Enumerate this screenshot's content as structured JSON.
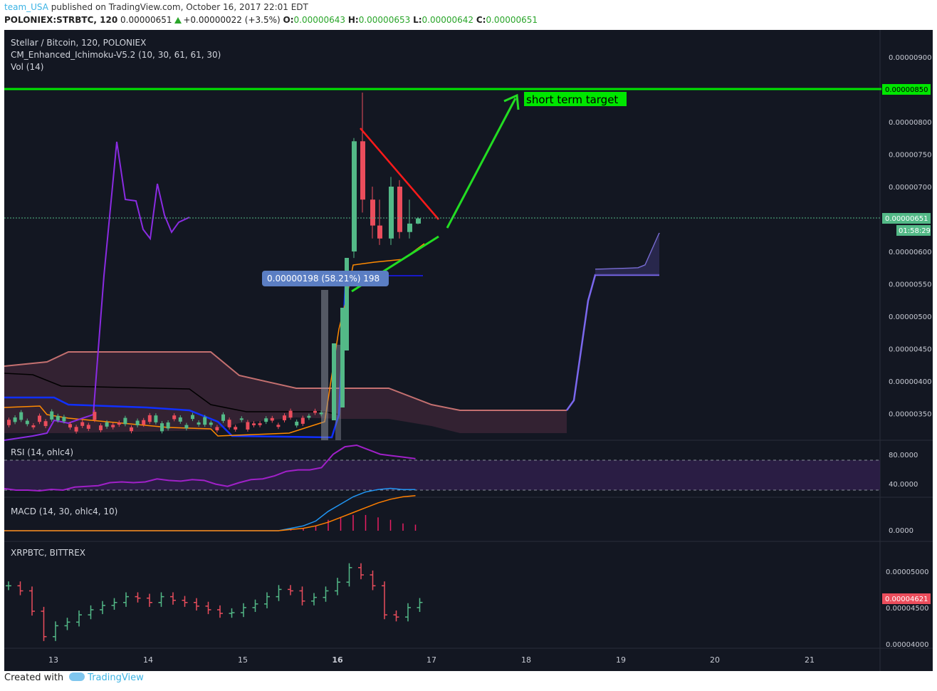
{
  "header": {
    "user": "team_USA",
    "published": "published on TradingView.com, October 16, 2017 22:01 EDT",
    "symbol": "POLONIEX:STRBTC, 120",
    "price": "0.00000651",
    "change": "+0.00000022 (+3.5%)",
    "o_label": "O:",
    "o": "0.00000643",
    "h_label": "H:",
    "h": "0.00000653",
    "l_label": "L:",
    "l": "0.00000642",
    "c_label": "C:",
    "c": "0.00000651"
  },
  "legend": {
    "title": "Stellar / Bitcoin, 120, POLONIEX",
    "ichimoku": "CM_Enhanced_Ichimoku-V5.2 (10, 30, 61, 61, 30)",
    "vol": "Vol (14)",
    "rsi": "RSI (14, ohlc4)",
    "macd": "MACD (14, 30, ohlc4, 10)",
    "xrp": "XRPBTC, BITTREX"
  },
  "annotations": {
    "target_label": "short term target",
    "measure_label": "0.00000198 (58.21%) 198",
    "price_tag": "0.00000651",
    "countdown": "01:58:29",
    "target_tag": "0.00000850",
    "xrp_tag": "0.00004621"
  },
  "colors": {
    "background": "#131722",
    "up": "#53b987",
    "down": "#eb4d5c",
    "target_line": "#00e600",
    "rsi": "#a020c8",
    "macd": "#2196f3",
    "signal": "#ff7f00"
  },
  "axis": {
    "main_ticks": [
      "0.00000900",
      "0.00000800",
      "0.00000750",
      "0.00000700",
      "0.00000600",
      "0.00000550",
      "0.00000500",
      "0.00000450",
      "0.00000400",
      "0.00000350"
    ],
    "rsi_ticks": [
      "80.0000",
      "40.0000"
    ],
    "macd_ticks": [
      "0.0000"
    ],
    "xrp_ticks": [
      "0.00005000",
      "0.00004500",
      "0.00004000"
    ],
    "x_ticks": [
      "13",
      "14",
      "15",
      "16",
      "17",
      "18",
      "19",
      "20",
      "21"
    ]
  },
  "footer": {
    "created": "Created with",
    "brand": "TradingView"
  },
  "chart_data": [
    {
      "type": "candlestick",
      "title": "Stellar / Bitcoin, 120, POLONIEX",
      "x_labels": [
        "13",
        "14",
        "15",
        "16",
        "17",
        "18",
        "19",
        "20",
        "21"
      ],
      "ylim": [
        3.2e-06,
        9.2e-06
      ],
      "target": 8.5e-06,
      "last_price": 6.51e-06,
      "candles_after_breakout": [
        {
          "o": 6e-06,
          "c": 7.7e-06,
          "h": 7.75e-06,
          "l": 5.9e-06
        },
        {
          "o": 7.7e-06,
          "c": 6.8e-06,
          "h": 8.45e-06,
          "l": 6.6e-06
        },
        {
          "o": 6.8e-06,
          "c": 6.4e-06,
          "h": 7e-06,
          "l": 6.2e-06
        },
        {
          "o": 6.4e-06,
          "c": 6.2e-06,
          "h": 6.8e-06,
          "l": 6.1e-06
        },
        {
          "o": 6.2e-06,
          "c": 7e-06,
          "h": 7.15e-06,
          "l": 6.1e-06
        },
        {
          "o": 7e-06,
          "c": 6.3e-06,
          "h": 7.1e-06,
          "l": 6.2e-06
        },
        {
          "o": 6.3e-06,
          "c": 6.43e-06,
          "h": 6.8e-06,
          "l": 6.2e-06
        },
        {
          "o": 6.43e-06,
          "c": 6.51e-06,
          "h": 6.53e-06,
          "l": 6.42e-06
        }
      ]
    },
    {
      "type": "line",
      "title": "RSI (14, ohlc4)",
      "ylim": [
        20,
        100
      ],
      "bands": [
        70,
        30
      ],
      "values": [
        32,
        30,
        30,
        29,
        31,
        30,
        34,
        35,
        36,
        40,
        41,
        40,
        41,
        45,
        43,
        42,
        44,
        43,
        38,
        35,
        40,
        44,
        45,
        49,
        55,
        57,
        57,
        60,
        78,
        88,
        90,
        84,
        78,
        76,
        74,
        72
      ]
    },
    {
      "type": "line",
      "title": "MACD (14, 30, ohlc4, 10)",
      "series": [
        {
          "values": [
            0,
            0,
            0,
            0,
            0,
            0,
            0,
            0,
            0,
            0,
            0,
            0,
            0,
            0,
            0,
            0,
            0,
            0,
            0,
            0,
            0,
            0,
            0,
            2,
            4,
            8,
            16,
            22,
            28,
            32,
            34,
            35,
            34,
            34
          ]
        },
        {
          "values": [
            0,
            0,
            0,
            0,
            0,
            0,
            0,
            0,
            0,
            0,
            0,
            0,
            0,
            0,
            0,
            0,
            0,
            0,
            0,
            0,
            0,
            0,
            0,
            1,
            2,
            4,
            7,
            11,
            15,
            19,
            23,
            26,
            28,
            29
          ]
        }
      ]
    },
    {
      "type": "ohlc",
      "title": "XRPBTC, BITTREX",
      "ylim": [
        3.9e-05,
        5.2e-05
      ],
      "last": 4.621e-05,
      "closes": [
        4.85e-05,
        4.78e-05,
        4.5e-05,
        4.15e-05,
        4.3e-05,
        4.35e-05,
        4.45e-05,
        4.52e-05,
        4.58e-05,
        4.62e-05,
        4.7e-05,
        4.68e-05,
        4.62e-05,
        4.7e-05,
        4.65e-05,
        4.62e-05,
        4.57e-05,
        4.52e-05,
        4.47e-05,
        4.48e-05,
        4.55e-05,
        4.6e-05,
        4.7e-05,
        4.8e-05,
        4.78e-05,
        4.64e-05,
        4.69e-05,
        4.78e-05,
        4.9e-05,
        5.1e-05,
        5e-05,
        4.85e-05,
        4.45e-05,
        4.42e-05,
        4.55e-05,
        4.621e-05
      ]
    }
  ]
}
